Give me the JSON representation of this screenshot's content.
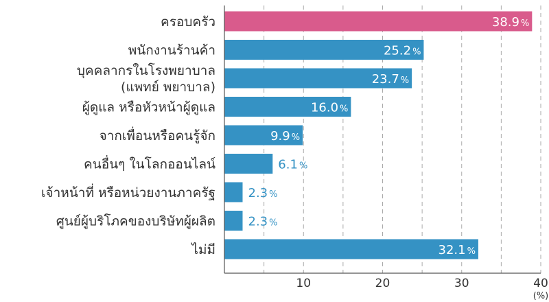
{
  "chart_data": {
    "type": "bar",
    "orientation": "horizontal",
    "categories": [
      [
        "ครอบครัว"
      ],
      [
        "พนักงานร้านค้า"
      ],
      [
        "บุคคลากรในโรงพยาบาล",
        "(แพทย์ พยาบาล)"
      ],
      [
        "ผู้ดูแล หรือหัวหน้าผู้ดูแล"
      ],
      [
        "จากเพื่อนหรือคนรู้จัก"
      ],
      [
        "คนอื่นๆ ในโลกออนไลน์"
      ],
      [
        "เจ้าหน้าที่ หรือหน่วยงานภาครัฐ"
      ],
      [
        "ศูนย์ผู้บริโภคของบริษัทผู้ผลิต"
      ],
      [
        "ไม่มี"
      ]
    ],
    "values": [
      38.9,
      25.2,
      23.7,
      16.0,
      9.9,
      6.1,
      2.3,
      2.3,
      32.1
    ],
    "value_labels": [
      "38.9",
      "25.2",
      "23.7",
      "16.0",
      "9.9",
      "6.1",
      "2.3",
      "2.3",
      "32.1"
    ],
    "value_suffix": "%",
    "highlight_index": 0,
    "xlim": [
      0,
      40
    ],
    "xticks": [
      10,
      20,
      30,
      40
    ],
    "xunit": "(%)",
    "grid": "vertical-dashed",
    "colors": {
      "bar": "#3592c4",
      "highlight": "#d95b8c",
      "label_inside": "#ffffff",
      "label_outside": "#3592c4",
      "grid": "#aaaaaa",
      "axis": "#555555",
      "text": "#333333"
    }
  }
}
